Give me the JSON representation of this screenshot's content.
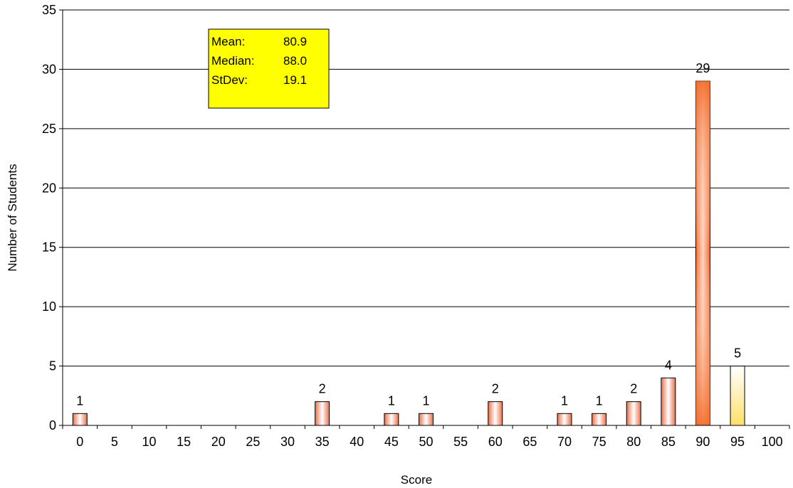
{
  "chart_data": {
    "type": "bar",
    "categories": [
      "0",
      "5",
      "10",
      "15",
      "20",
      "25",
      "30",
      "35",
      "40",
      "45",
      "50",
      "55",
      "60",
      "65",
      "70",
      "75",
      "80",
      "85",
      "90",
      "95",
      "100"
    ],
    "values": [
      1,
      0,
      0,
      0,
      0,
      0,
      0,
      2,
      0,
      1,
      1,
      0,
      2,
      0,
      1,
      1,
      2,
      4,
      29,
      5,
      0
    ],
    "data_labels": [
      "1",
      "",
      "",
      "",
      "",
      "",
      "",
      "2",
      "",
      "1",
      "1",
      "",
      "2",
      "",
      "1",
      "1",
      "2",
      "4",
      "29",
      "5",
      ""
    ],
    "xlabel": "Score",
    "ylabel": "Number of Students",
    "ylim": [
      0,
      35
    ],
    "yticks": [
      "0",
      "5",
      "10",
      "15",
      "20",
      "25",
      "30",
      "35"
    ],
    "grid": "horizontal",
    "legend": "none",
    "stats_box": {
      "rows": [
        {
          "label": "Mean:",
          "value": "80.9"
        },
        {
          "label": "Median:",
          "value": "88.0"
        },
        {
          "label": "StDev:",
          "value": "19.1"
        }
      ],
      "background": "#ffff00"
    },
    "colors": {
      "bar_light": "#ffffff",
      "bar_dark": "#e9704a",
      "bar_highlight_dark": "#f26d2c",
      "bar_last_dark": "#ffe06a"
    }
  }
}
